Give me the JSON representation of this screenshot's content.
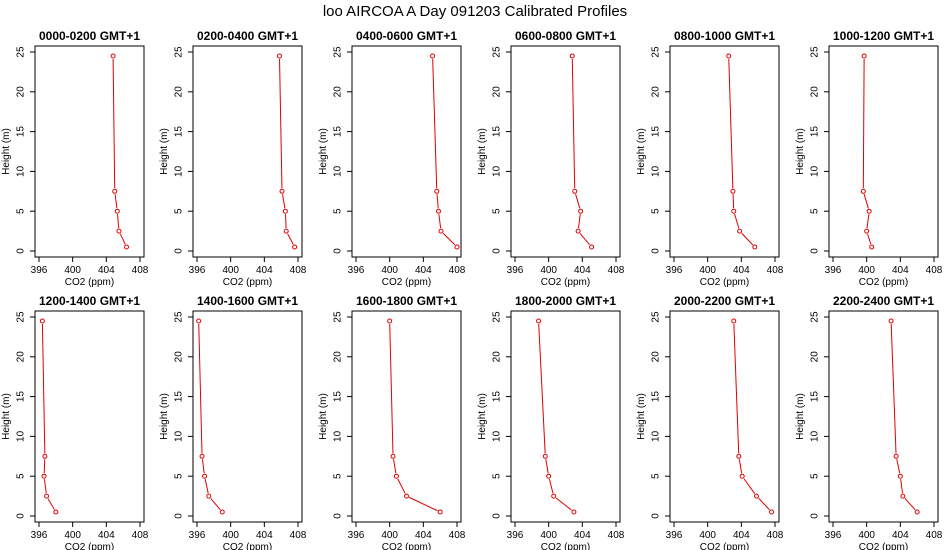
{
  "figure": {
    "title": "loo AIRCOA A  Day 091203  Calibrated Profiles",
    "series_color": "#e00000"
  },
  "chart_data": [
    {
      "type": "line",
      "title": "0000-0200 GMT+1",
      "xlabel": "CO2 (ppm)",
      "ylabel": "Height (m)",
      "xlim": [
        396,
        408
      ],
      "ylim": [
        0,
        25
      ],
      "xticks": [
        396,
        400,
        404,
        408
      ],
      "yticks": [
        0,
        5,
        10,
        15,
        20,
        25
      ],
      "series": [
        {
          "x": [
            406.4,
            405.5,
            405.3,
            405.0,
            404.8
          ],
          "y": [
            0.5,
            2.5,
            5,
            7.5,
            24.5
          ]
        }
      ]
    },
    {
      "type": "line",
      "title": "0200-0400 GMT+1",
      "xlabel": "CO2 (ppm)",
      "ylabel": "Height (m)",
      "xlim": [
        396,
        408
      ],
      "ylim": [
        0,
        25
      ],
      "xticks": [
        396,
        400,
        404,
        408
      ],
      "yticks": [
        0,
        5,
        10,
        15,
        20,
        25
      ],
      "series": [
        {
          "x": [
            407.6,
            406.6,
            406.5,
            406.1,
            405.8
          ],
          "y": [
            0.5,
            2.5,
            5,
            7.5,
            24.5
          ]
        }
      ]
    },
    {
      "type": "line",
      "title": "0400-0600 GMT+1",
      "xlabel": "CO2 (ppm)",
      "ylabel": "Height (m)",
      "xlim": [
        396,
        408
      ],
      "ylim": [
        0,
        25
      ],
      "xticks": [
        396,
        400,
        404,
        408
      ],
      "yticks": [
        0,
        5,
        10,
        15,
        20,
        25
      ],
      "series": [
        {
          "x": [
            408.0,
            406.1,
            405.8,
            405.6,
            405.1
          ],
          "y": [
            0.5,
            2.5,
            5,
            7.5,
            24.5
          ]
        }
      ]
    },
    {
      "type": "line",
      "title": "0600-0800 GMT+1",
      "xlabel": "CO2 (ppm)",
      "ylabel": "Height (m)",
      "xlim": [
        396,
        408
      ],
      "ylim": [
        0,
        25
      ],
      "xticks": [
        396,
        400,
        404,
        408
      ],
      "yticks": [
        0,
        5,
        10,
        15,
        20,
        25
      ],
      "series": [
        {
          "x": [
            405.1,
            403.5,
            403.8,
            403.1,
            402.8
          ],
          "y": [
            0.5,
            2.5,
            5,
            7.5,
            24.5
          ]
        }
      ]
    },
    {
      "type": "line",
      "title": "0800-1000 GMT+1",
      "xlabel": "CO2 (ppm)",
      "ylabel": "Height (m)",
      "xlim": [
        396,
        408
      ],
      "ylim": [
        0,
        25
      ],
      "xticks": [
        396,
        400,
        404,
        408
      ],
      "yticks": [
        0,
        5,
        10,
        15,
        20,
        25
      ],
      "series": [
        {
          "x": [
            405.6,
            403.8,
            403.1,
            403.0,
            402.5
          ],
          "y": [
            0.5,
            2.5,
            5,
            7.5,
            24.5
          ]
        }
      ]
    },
    {
      "type": "line",
      "title": "1000-1200 GMT+1",
      "xlabel": "CO2 (ppm)",
      "ylabel": "Height (m)",
      "xlim": [
        396,
        408
      ],
      "ylim": [
        0,
        25
      ],
      "xticks": [
        396,
        400,
        404,
        408
      ],
      "yticks": [
        0,
        5,
        10,
        15,
        20,
        25
      ],
      "series": [
        {
          "x": [
            400.6,
            400.0,
            400.3,
            399.6,
            399.7
          ],
          "y": [
            0.5,
            2.5,
            5,
            7.5,
            24.5
          ]
        }
      ]
    },
    {
      "type": "line",
      "title": "1200-1400 GMT+1",
      "xlabel": "CO2 (ppm)",
      "ylabel": "Height (m)",
      "xlim": [
        396,
        408
      ],
      "ylim": [
        0,
        25
      ],
      "xticks": [
        396,
        400,
        404,
        408
      ],
      "yticks": [
        0,
        5,
        10,
        15,
        20,
        25
      ],
      "series": [
        {
          "x": [
            398.0,
            396.9,
            396.6,
            396.7,
            396.4
          ],
          "y": [
            0.5,
            2.5,
            5,
            7.5,
            24.5
          ]
        }
      ]
    },
    {
      "type": "line",
      "title": "1400-1600 GMT+1",
      "xlabel": "CO2 (ppm)",
      "ylabel": "Height (m)",
      "xlim": [
        396,
        408
      ],
      "ylim": [
        0,
        25
      ],
      "xticks": [
        396,
        400,
        404,
        408
      ],
      "yticks": [
        0,
        5,
        10,
        15,
        20,
        25
      ],
      "series": [
        {
          "x": [
            399.0,
            397.4,
            396.9,
            396.6,
            396.2
          ],
          "y": [
            0.5,
            2.5,
            5,
            7.5,
            24.5
          ]
        }
      ]
    },
    {
      "type": "line",
      "title": "1600-1800 GMT+1",
      "xlabel": "CO2 (ppm)",
      "ylabel": "Height (m)",
      "xlim": [
        396,
        408
      ],
      "ylim": [
        0,
        25
      ],
      "xticks": [
        396,
        400,
        404,
        408
      ],
      "yticks": [
        0,
        5,
        10,
        15,
        20,
        25
      ],
      "series": [
        {
          "x": [
            406.0,
            402.0,
            400.8,
            400.4,
            400.0
          ],
          "y": [
            0.5,
            2.5,
            5,
            7.5,
            24.5
          ]
        }
      ]
    },
    {
      "type": "line",
      "title": "1800-2000 GMT+1",
      "xlabel": "CO2 (ppm)",
      "ylabel": "Height (m)",
      "xlim": [
        396,
        408
      ],
      "ylim": [
        0,
        25
      ],
      "xticks": [
        396,
        400,
        404,
        408
      ],
      "yticks": [
        0,
        5,
        10,
        15,
        20,
        25
      ],
      "series": [
        {
          "x": [
            403.0,
            400.6,
            400.0,
            399.6,
            398.8
          ],
          "y": [
            0.5,
            2.5,
            5,
            7.5,
            24.5
          ]
        }
      ]
    },
    {
      "type": "line",
      "title": "2000-2200 GMT+1",
      "xlabel": "CO2 (ppm)",
      "ylabel": "Height (m)",
      "xlim": [
        396,
        408
      ],
      "ylim": [
        0,
        25
      ],
      "xticks": [
        396,
        400,
        404,
        408
      ],
      "yticks": [
        0,
        5,
        10,
        15,
        20,
        25
      ],
      "series": [
        {
          "x": [
            407.6,
            405.8,
            404.1,
            403.7,
            403.1
          ],
          "y": [
            0.5,
            2.5,
            5,
            7.5,
            24.5
          ]
        }
      ]
    },
    {
      "type": "line",
      "title": "2200-2400 GMT+1",
      "xlabel": "CO2 (ppm)",
      "ylabel": "Height (m)",
      "xlim": [
        396,
        408
      ],
      "ylim": [
        0,
        25
      ],
      "xticks": [
        396,
        400,
        404,
        408
      ],
      "yticks": [
        0,
        5,
        10,
        15,
        20,
        25
      ],
      "series": [
        {
          "x": [
            406.0,
            404.3,
            404.0,
            403.5,
            402.9
          ],
          "y": [
            0.5,
            2.5,
            5,
            7.5,
            24.5
          ]
        }
      ]
    }
  ]
}
